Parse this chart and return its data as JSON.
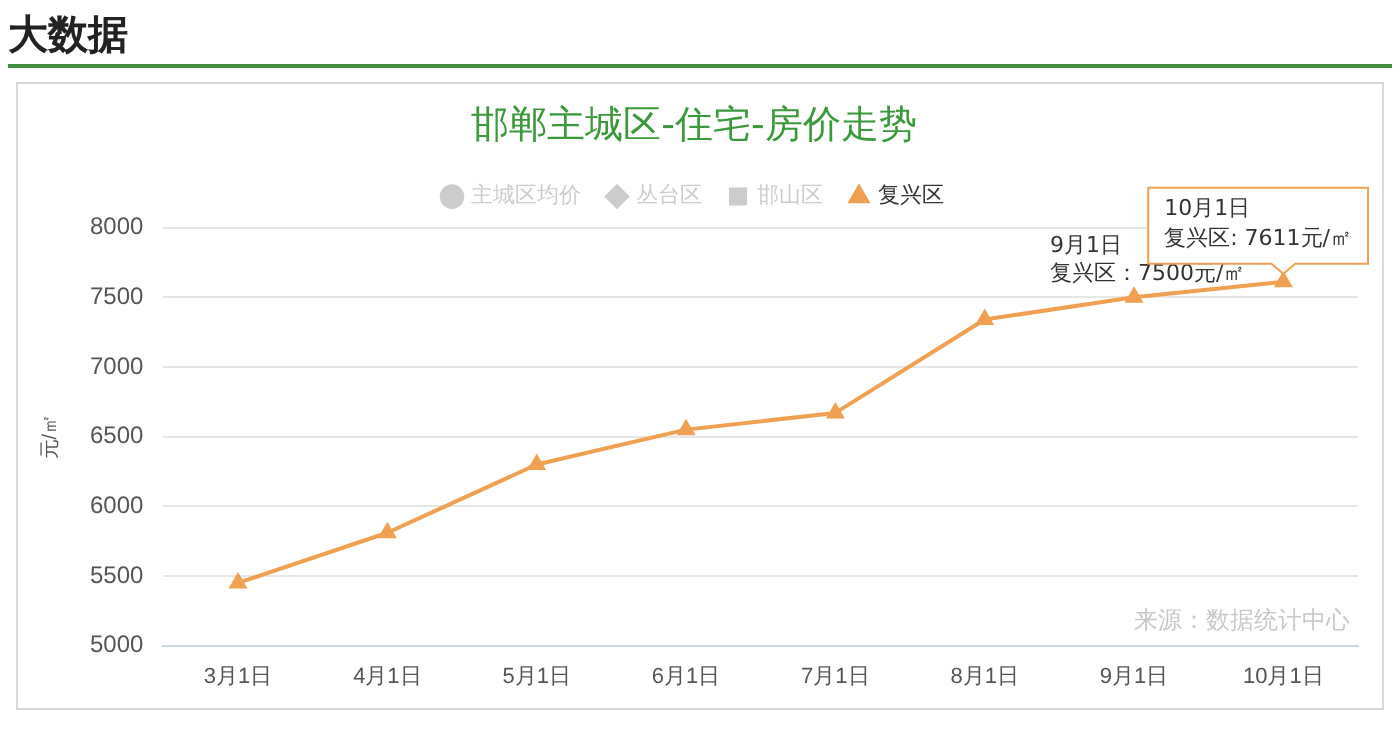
{
  "chart_data": {
    "type": "line",
    "title": "邯郸主城区-住宅-房价走势",
    "ylabel": "元/㎡",
    "categories": [
      "3月1日",
      "4月1日",
      "5月1日",
      "6月1日",
      "7月1日",
      "8月1日",
      "9月1日",
      "10月1日"
    ],
    "series": [
      {
        "name": "主城区均价",
        "color": "#cccccc",
        "marker": "circle",
        "values": [
          null,
          null,
          null,
          null,
          null,
          null,
          null,
          null
        ]
      },
      {
        "name": "丛台区",
        "color": "#cccccc",
        "marker": "diamond",
        "values": [
          null,
          null,
          null,
          null,
          null,
          null,
          null,
          null
        ]
      },
      {
        "name": "邯山区",
        "color": "#cccccc",
        "marker": "square",
        "values": [
          null,
          null,
          null,
          null,
          null,
          null,
          null,
          null
        ]
      },
      {
        "name": "复兴区",
        "color": "#f0a050",
        "marker": "triangle",
        "values": [
          5450,
          5810,
          6300,
          6550,
          6670,
          7340,
          7500,
          7611
        ]
      }
    ],
    "ylim": [
      5000,
      8000
    ],
    "yticks": [
      5000,
      5500,
      6000,
      6500,
      7000,
      7500,
      8000
    ],
    "grid": "y",
    "legend": "top",
    "annotations": [
      "大数据",
      {
        "text": "9月1日",
        "x": "9月1日",
        "y": 7500
      },
      {
        "text": "复兴区：7500元/㎡",
        "x": "9月1日",
        "y": 7500
      },
      "10月1日",
      {
        "text": "复兴区: 7611元/㎡",
        "x": "10月1日",
        "y": 7611
      },
      "来源：数据统计中心"
    ]
  }
}
